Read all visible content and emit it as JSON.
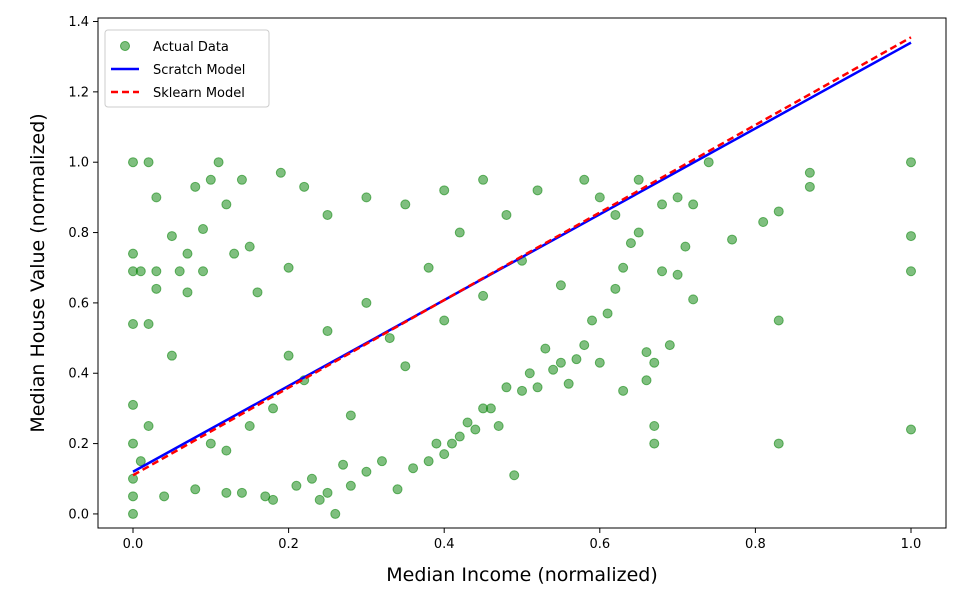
{
  "chart_data": {
    "type": "scatter",
    "title": "",
    "xlabel": "Median Income (normalized)",
    "ylabel": "Median House Value (normalized)",
    "xlim": [
      -0.045,
      1.045
    ],
    "ylim": [
      -0.04,
      1.41
    ],
    "xticks": [
      {
        "value": 0.0,
        "label": "0.0"
      },
      {
        "value": 0.2,
        "label": "0.2"
      },
      {
        "value": 0.4,
        "label": "0.4"
      },
      {
        "value": 0.6,
        "label": "0.6"
      },
      {
        "value": 0.8,
        "label": "0.8"
      },
      {
        "value": 1.0,
        "label": "1.0"
      }
    ],
    "yticks": [
      {
        "value": 0.0,
        "label": "0.0"
      },
      {
        "value": 0.2,
        "label": "0.2"
      },
      {
        "value": 0.4,
        "label": "0.4"
      },
      {
        "value": 0.6,
        "label": "0.6"
      },
      {
        "value": 0.8,
        "label": "0.8"
      },
      {
        "value": 1.0,
        "label": "1.0"
      },
      {
        "value": 1.2,
        "label": "1.2"
      },
      {
        "value": 1.4,
        "label": "1.4"
      }
    ],
    "grid": false,
    "legend_position": "top-left",
    "series": [
      {
        "name": "Actual Data",
        "kind": "scatter",
        "color": "#008000",
        "alpha": 0.5,
        "points": [
          [
            0.0,
            0.1
          ],
          [
            0.0,
            0.2
          ],
          [
            0.0,
            0.31
          ],
          [
            0.0,
            0.54
          ],
          [
            0.0,
            0.69
          ],
          [
            0.0,
            0.74
          ],
          [
            0.0,
            1.0
          ],
          [
            0.0,
            0.05
          ],
          [
            0.0,
            0.0
          ],
          [
            0.01,
            0.15
          ],
          [
            0.01,
            0.69
          ],
          [
            0.02,
            0.25
          ],
          [
            0.02,
            0.54
          ],
          [
            0.02,
            1.0
          ],
          [
            0.03,
            0.9
          ],
          [
            0.03,
            0.64
          ],
          [
            0.03,
            0.69
          ],
          [
            0.04,
            0.05
          ],
          [
            0.05,
            0.45
          ],
          [
            0.05,
            0.79
          ],
          [
            0.06,
            0.69
          ],
          [
            0.07,
            0.63
          ],
          [
            0.07,
            0.74
          ],
          [
            0.08,
            0.07
          ],
          [
            0.08,
            0.93
          ],
          [
            0.09,
            0.81
          ],
          [
            0.09,
            0.69
          ],
          [
            0.1,
            0.95
          ],
          [
            0.1,
            0.2
          ],
          [
            0.11,
            1.0
          ],
          [
            0.12,
            0.06
          ],
          [
            0.12,
            0.88
          ],
          [
            0.13,
            0.74
          ],
          [
            0.14,
            0.95
          ],
          [
            0.14,
            0.06
          ],
          [
            0.15,
            0.76
          ],
          [
            0.16,
            0.63
          ],
          [
            0.17,
            0.05
          ],
          [
            0.18,
            0.04
          ],
          [
            0.19,
            0.97
          ],
          [
            0.2,
            0.7
          ],
          [
            0.21,
            0.08
          ],
          [
            0.22,
            0.93
          ],
          [
            0.23,
            0.1
          ],
          [
            0.24,
            0.04
          ],
          [
            0.25,
            0.06
          ],
          [
            0.26,
            0.0
          ],
          [
            0.27,
            0.14
          ],
          [
            0.28,
            0.08
          ],
          [
            0.3,
            0.12
          ],
          [
            0.32,
            0.15
          ],
          [
            0.34,
            0.07
          ],
          [
            0.36,
            0.13
          ],
          [
            0.38,
            0.15
          ],
          [
            0.39,
            0.2
          ],
          [
            0.4,
            0.17
          ],
          [
            0.41,
            0.2
          ],
          [
            0.42,
            0.22
          ],
          [
            0.43,
            0.26
          ],
          [
            0.44,
            0.24
          ],
          [
            0.45,
            0.3
          ],
          [
            0.46,
            0.3
          ],
          [
            0.47,
            0.25
          ],
          [
            0.48,
            0.36
          ],
          [
            0.49,
            0.11
          ],
          [
            0.5,
            0.35
          ],
          [
            0.51,
            0.4
          ],
          [
            0.52,
            0.36
          ],
          [
            0.53,
            0.47
          ],
          [
            0.54,
            0.41
          ],
          [
            0.55,
            0.43
          ],
          [
            0.56,
            0.37
          ],
          [
            0.57,
            0.44
          ],
          [
            0.58,
            0.48
          ],
          [
            0.59,
            0.55
          ],
          [
            0.6,
            0.43
          ],
          [
            0.61,
            0.57
          ],
          [
            0.62,
            0.64
          ],
          [
            0.63,
            0.7
          ],
          [
            0.63,
            0.35
          ],
          [
            0.64,
            0.77
          ],
          [
            0.65,
            0.8
          ],
          [
            0.66,
            0.46
          ],
          [
            0.66,
            0.38
          ],
          [
            0.67,
            0.43
          ],
          [
            0.67,
            0.25
          ],
          [
            0.67,
            0.2
          ],
          [
            0.68,
            0.69
          ],
          [
            0.68,
            0.88
          ],
          [
            0.69,
            0.48
          ],
          [
            0.7,
            0.68
          ],
          [
            0.71,
            0.76
          ],
          [
            0.72,
            0.61
          ],
          [
            0.72,
            0.88
          ],
          [
            0.74,
            1.0
          ],
          [
            0.77,
            0.78
          ],
          [
            0.81,
            0.83
          ],
          [
            0.83,
            0.86
          ],
          [
            0.83,
            0.55
          ],
          [
            0.83,
            0.2
          ],
          [
            0.87,
            0.97
          ],
          [
            0.87,
            0.93
          ],
          [
            1.0,
            1.0
          ],
          [
            1.0,
            0.79
          ],
          [
            1.0,
            0.69
          ],
          [
            1.0,
            0.24
          ],
          [
            0.2,
            0.45
          ],
          [
            0.22,
            0.38
          ],
          [
            0.25,
            0.52
          ],
          [
            0.18,
            0.3
          ],
          [
            0.3,
            0.6
          ],
          [
            0.33,
            0.5
          ],
          [
            0.35,
            0.42
          ],
          [
            0.15,
            0.25
          ],
          [
            0.12,
            0.18
          ],
          [
            0.28,
            0.28
          ],
          [
            0.4,
            0.55
          ],
          [
            0.45,
            0.62
          ],
          [
            0.38,
            0.7
          ],
          [
            0.42,
            0.8
          ],
          [
            0.5,
            0.72
          ],
          [
            0.55,
            0.65
          ],
          [
            0.48,
            0.85
          ],
          [
            0.35,
            0.88
          ],
          [
            0.3,
            0.9
          ],
          [
            0.25,
            0.85
          ],
          [
            0.52,
            0.92
          ],
          [
            0.58,
            0.95
          ],
          [
            0.6,
            0.9
          ],
          [
            0.62,
            0.85
          ],
          [
            0.7,
            0.9
          ],
          [
            0.65,
            0.95
          ],
          [
            0.45,
            0.95
          ],
          [
            0.4,
            0.92
          ]
        ]
      },
      {
        "name": "Scratch Model",
        "kind": "line",
        "color": "#0000ff",
        "x": [
          0.0,
          1.0
        ],
        "y": [
          0.12,
          1.34
        ]
      },
      {
        "name": "Sklearn Model",
        "kind": "dashed-line",
        "color": "#ff0000",
        "x": [
          0.0,
          1.0
        ],
        "y": [
          0.11,
          1.355
        ]
      }
    ]
  }
}
